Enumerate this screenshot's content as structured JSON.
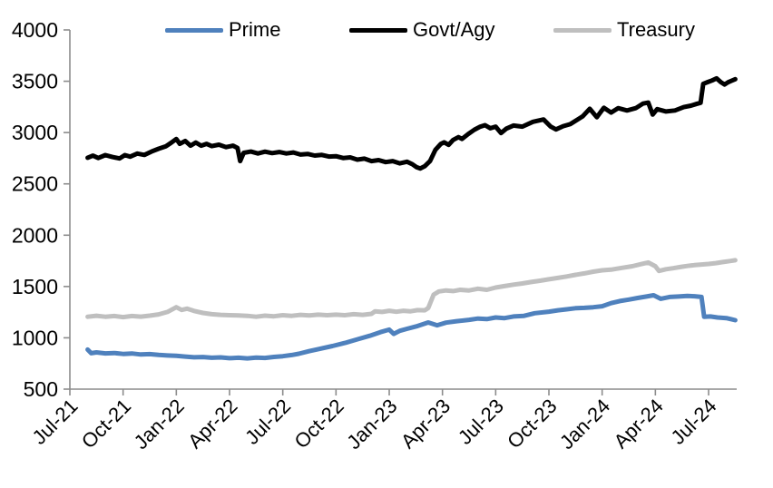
{
  "chart_data": {
    "type": "line",
    "title": "",
    "xlabel": "",
    "ylabel": "",
    "grid": false,
    "axis_color": "#8c8c8c",
    "text_color": "#000000",
    "legend": {
      "position": "top",
      "entries": [
        "Prime",
        "Govt/Agy",
        "Treasury"
      ]
    },
    "x_axis": {
      "tick_months": [
        0,
        3,
        6,
        9,
        12,
        15,
        18,
        21,
        24,
        27,
        30,
        33,
        36
      ],
      "tick_labels": [
        "Jul-21",
        "Oct-21",
        "Jan-22",
        "Apr-22",
        "Jul-22",
        "Oct-22",
        "Jan-23",
        "Apr-23",
        "Jul-23",
        "Oct-23",
        "Jan-24",
        "Apr-24",
        "Jul-24"
      ],
      "label_rotation_deg": -45,
      "data_range_months": [
        1.0,
        37.5
      ]
    },
    "y_axis": {
      "ticks": [
        500,
        1000,
        1500,
        2000,
        2500,
        3000,
        3500,
        4000
      ],
      "tick_labels": [
        "500",
        "1000",
        "1500",
        "2000",
        "2500",
        "3000",
        "3500",
        "4000"
      ],
      "range": [
        500,
        4000
      ]
    },
    "series": [
      {
        "name": "Prime",
        "color": "#4f81bd",
        "stroke_width": 5,
        "points": [
          [
            1.0,
            885
          ],
          [
            1.2,
            850
          ],
          [
            1.5,
            858
          ],
          [
            2.0,
            848
          ],
          [
            2.5,
            852
          ],
          [
            3.0,
            843
          ],
          [
            3.5,
            847
          ],
          [
            4.0,
            838
          ],
          [
            4.5,
            841
          ],
          [
            5.0,
            833
          ],
          [
            5.5,
            828
          ],
          [
            6.0,
            824
          ],
          [
            6.5,
            817
          ],
          [
            7.0,
            810
          ],
          [
            7.5,
            813
          ],
          [
            8.0,
            806
          ],
          [
            8.5,
            809
          ],
          [
            9.0,
            801
          ],
          [
            9.5,
            806
          ],
          [
            10.0,
            800
          ],
          [
            10.5,
            807
          ],
          [
            11.0,
            804
          ],
          [
            11.5,
            814
          ],
          [
            12.0,
            821
          ],
          [
            12.5,
            832
          ],
          [
            12.9,
            845
          ],
          [
            13.5,
            870
          ],
          [
            14.0,
            890
          ],
          [
            14.8,
            920
          ],
          [
            15.5,
            950
          ],
          [
            16.2,
            985
          ],
          [
            16.9,
            1020
          ],
          [
            17.5,
            1055
          ],
          [
            18.0,
            1080
          ],
          [
            18.25,
            1038
          ],
          [
            18.6,
            1068
          ],
          [
            19.0,
            1088
          ],
          [
            19.6,
            1115
          ],
          [
            20.2,
            1150
          ],
          [
            20.7,
            1122
          ],
          [
            21.2,
            1148
          ],
          [
            21.8,
            1162
          ],
          [
            22.5,
            1175
          ],
          [
            23.0,
            1188
          ],
          [
            23.5,
            1182
          ],
          [
            24.0,
            1198
          ],
          [
            24.5,
            1192
          ],
          [
            25.0,
            1208
          ],
          [
            25.6,
            1214
          ],
          [
            26.2,
            1240
          ],
          [
            27.0,
            1255
          ],
          [
            27.5,
            1268
          ],
          [
            28.0,
            1278
          ],
          [
            28.5,
            1288
          ],
          [
            29.0,
            1292
          ],
          [
            29.5,
            1298
          ],
          [
            30.0,
            1308
          ],
          [
            30.5,
            1338
          ],
          [
            31.0,
            1358
          ],
          [
            31.5,
            1372
          ],
          [
            32.0,
            1388
          ],
          [
            32.5,
            1402
          ],
          [
            32.9,
            1415
          ],
          [
            33.3,
            1380
          ],
          [
            33.8,
            1398
          ],
          [
            34.3,
            1402
          ],
          [
            34.8,
            1408
          ],
          [
            35.2,
            1405
          ],
          [
            35.6,
            1398
          ],
          [
            35.75,
            1205
          ],
          [
            36.1,
            1208
          ],
          [
            36.5,
            1198
          ],
          [
            37.0,
            1192
          ],
          [
            37.25,
            1182
          ],
          [
            37.5,
            1172
          ]
        ]
      },
      {
        "name": "Govt/Agy",
        "color": "#000000",
        "stroke_width": 5,
        "points": [
          [
            1.0,
            2755
          ],
          [
            1.3,
            2775
          ],
          [
            1.6,
            2752
          ],
          [
            2.0,
            2780
          ],
          [
            2.4,
            2762
          ],
          [
            2.8,
            2748
          ],
          [
            3.1,
            2780
          ],
          [
            3.4,
            2765
          ],
          [
            3.8,
            2795
          ],
          [
            4.2,
            2782
          ],
          [
            4.6,
            2815
          ],
          [
            5.0,
            2842
          ],
          [
            5.4,
            2865
          ],
          [
            5.7,
            2900
          ],
          [
            6.0,
            2938
          ],
          [
            6.2,
            2890
          ],
          [
            6.5,
            2918
          ],
          [
            6.8,
            2872
          ],
          [
            7.1,
            2903
          ],
          [
            7.4,
            2872
          ],
          [
            7.7,
            2890
          ],
          [
            8.0,
            2868
          ],
          [
            8.4,
            2882
          ],
          [
            8.8,
            2858
          ],
          [
            9.2,
            2872
          ],
          [
            9.45,
            2850
          ],
          [
            9.6,
            2722
          ],
          [
            9.8,
            2802
          ],
          [
            10.2,
            2815
          ],
          [
            10.6,
            2796
          ],
          [
            11.0,
            2814
          ],
          [
            11.4,
            2800
          ],
          [
            11.8,
            2810
          ],
          [
            12.2,
            2796
          ],
          [
            12.6,
            2806
          ],
          [
            13.0,
            2786
          ],
          [
            13.4,
            2792
          ],
          [
            13.8,
            2776
          ],
          [
            14.2,
            2782
          ],
          [
            14.6,
            2766
          ],
          [
            15.0,
            2770
          ],
          [
            15.4,
            2752
          ],
          [
            15.8,
            2758
          ],
          [
            16.2,
            2736
          ],
          [
            16.6,
            2746
          ],
          [
            17.0,
            2722
          ],
          [
            17.4,
            2732
          ],
          [
            17.8,
            2712
          ],
          [
            18.2,
            2722
          ],
          [
            18.6,
            2700
          ],
          [
            19.0,
            2716
          ],
          [
            19.3,
            2692
          ],
          [
            19.55,
            2662
          ],
          [
            19.75,
            2650
          ],
          [
            20.0,
            2672
          ],
          [
            20.3,
            2722
          ],
          [
            20.6,
            2832
          ],
          [
            20.9,
            2888
          ],
          [
            21.1,
            2905
          ],
          [
            21.35,
            2880
          ],
          [
            21.6,
            2928
          ],
          [
            21.9,
            2955
          ],
          [
            22.1,
            2938
          ],
          [
            22.45,
            2985
          ],
          [
            22.8,
            3028
          ],
          [
            23.1,
            3055
          ],
          [
            23.4,
            3072
          ],
          [
            23.7,
            3042
          ],
          [
            24.0,
            3058
          ],
          [
            24.3,
            2995
          ],
          [
            24.6,
            3038
          ],
          [
            25.0,
            3068
          ],
          [
            25.5,
            3058
          ],
          [
            26.1,
            3105
          ],
          [
            26.7,
            3128
          ],
          [
            27.1,
            3058
          ],
          [
            27.4,
            3030
          ],
          [
            27.8,
            3062
          ],
          [
            28.2,
            3082
          ],
          [
            28.9,
            3158
          ],
          [
            29.3,
            3232
          ],
          [
            29.7,
            3150
          ],
          [
            30.1,
            3242
          ],
          [
            30.5,
            3195
          ],
          [
            30.9,
            3238
          ],
          [
            31.4,
            3215
          ],
          [
            31.9,
            3238
          ],
          [
            32.3,
            3282
          ],
          [
            32.6,
            3292
          ],
          [
            32.85,
            3175
          ],
          [
            33.1,
            3228
          ],
          [
            33.6,
            3205
          ],
          [
            34.1,
            3215
          ],
          [
            34.6,
            3248
          ],
          [
            35.0,
            3262
          ],
          [
            35.3,
            3278
          ],
          [
            35.55,
            3290
          ],
          [
            35.7,
            3475
          ],
          [
            35.95,
            3492
          ],
          [
            36.2,
            3508
          ],
          [
            36.45,
            3528
          ],
          [
            36.7,
            3490
          ],
          [
            36.9,
            3468
          ],
          [
            37.1,
            3490
          ],
          [
            37.3,
            3505
          ],
          [
            37.5,
            3520
          ]
        ]
      },
      {
        "name": "Treasury",
        "color": "#bfbfbf",
        "stroke_width": 5,
        "points": [
          [
            1.0,
            1205
          ],
          [
            1.5,
            1215
          ],
          [
            2.0,
            1205
          ],
          [
            2.5,
            1212
          ],
          [
            3.0,
            1202
          ],
          [
            3.5,
            1212
          ],
          [
            4.0,
            1206
          ],
          [
            4.5,
            1216
          ],
          [
            5.0,
            1228
          ],
          [
            5.5,
            1252
          ],
          [
            6.0,
            1298
          ],
          [
            6.3,
            1272
          ],
          [
            6.6,
            1284
          ],
          [
            7.0,
            1262
          ],
          [
            7.5,
            1242
          ],
          [
            8.0,
            1230
          ],
          [
            8.5,
            1224
          ],
          [
            9.0,
            1220
          ],
          [
            9.5,
            1218
          ],
          [
            10.0,
            1214
          ],
          [
            10.5,
            1205
          ],
          [
            11.0,
            1216
          ],
          [
            11.5,
            1210
          ],
          [
            12.0,
            1220
          ],
          [
            12.5,
            1214
          ],
          [
            13.0,
            1224
          ],
          [
            13.5,
            1218
          ],
          [
            14.0,
            1226
          ],
          [
            14.5,
            1220
          ],
          [
            15.0,
            1226
          ],
          [
            15.5,
            1220
          ],
          [
            16.0,
            1230
          ],
          [
            16.5,
            1224
          ],
          [
            17.0,
            1234
          ],
          [
            17.2,
            1258
          ],
          [
            17.6,
            1252
          ],
          [
            18.0,
            1264
          ],
          [
            18.4,
            1254
          ],
          [
            18.8,
            1264
          ],
          [
            19.2,
            1258
          ],
          [
            19.6,
            1270
          ],
          [
            20.0,
            1268
          ],
          [
            20.2,
            1290
          ],
          [
            20.5,
            1420
          ],
          [
            20.8,
            1452
          ],
          [
            21.2,
            1462
          ],
          [
            21.6,
            1455
          ],
          [
            22.0,
            1468
          ],
          [
            22.5,
            1462
          ],
          [
            23.0,
            1478
          ],
          [
            23.5,
            1468
          ],
          [
            24.0,
            1490
          ],
          [
            24.5,
            1504
          ],
          [
            25.0,
            1518
          ],
          [
            25.5,
            1530
          ],
          [
            26.0,
            1544
          ],
          [
            26.5,
            1556
          ],
          [
            27.0,
            1570
          ],
          [
            27.5,
            1584
          ],
          [
            28.0,
            1598
          ],
          [
            28.5,
            1614
          ],
          [
            29.0,
            1628
          ],
          [
            29.5,
            1645
          ],
          [
            30.0,
            1658
          ],
          [
            30.5,
            1664
          ],
          [
            31.0,
            1678
          ],
          [
            31.7,
            1698
          ],
          [
            32.3,
            1722
          ],
          [
            32.6,
            1734
          ],
          [
            33.0,
            1698
          ],
          [
            33.2,
            1652
          ],
          [
            33.6,
            1668
          ],
          [
            34.0,
            1678
          ],
          [
            34.4,
            1690
          ],
          [
            34.8,
            1700
          ],
          [
            35.2,
            1708
          ],
          [
            35.6,
            1714
          ],
          [
            36.0,
            1720
          ],
          [
            36.4,
            1728
          ],
          [
            36.8,
            1738
          ],
          [
            37.2,
            1748
          ],
          [
            37.5,
            1756
          ]
        ]
      }
    ]
  }
}
